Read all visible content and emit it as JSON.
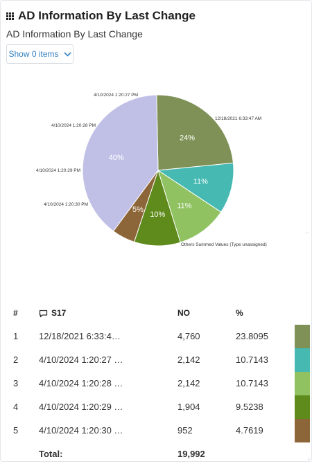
{
  "widget": {
    "title": "AD Information By Last Change",
    "subtitle": "AD Information By Last Change",
    "show_button_label": "Show 0 items"
  },
  "chart_data": {
    "type": "pie",
    "slices": [
      {
        "label": "12/18/2021 6:33:47 AM",
        "percent": 24,
        "value": 4760,
        "color": "#7f9156"
      },
      {
        "label": "4/10/2024 1:20:27 PM",
        "percent": 11,
        "value": 2142,
        "color": "#46b9b2"
      },
      {
        "label": "4/10/2024 1:20:28 PM",
        "percent": 11,
        "value": 2142,
        "color": "#90c262"
      },
      {
        "label": "4/10/2024 1:20:29 PM",
        "percent": 10,
        "value": 1904,
        "color": "#5f8a1c"
      },
      {
        "label": "4/10/2024 1:20:30 PM",
        "percent": 5,
        "value": 952,
        "color": "#8c6538"
      },
      {
        "label": "Others Summed Values (Type unassigned)",
        "percent": 40,
        "value": 8092,
        "color": "#c0c0e6"
      }
    ]
  },
  "table": {
    "headers": {
      "index": "#",
      "name": "S17",
      "no": "NO",
      "pct": "%"
    },
    "rows": [
      {
        "index": "1",
        "name": "12/18/2021 6:33:4…",
        "no": "4,760",
        "pct": "23.8095",
        "color": "#7f9156"
      },
      {
        "index": "2",
        "name": "4/10/2024 1:20:27 …",
        "no": "2,142",
        "pct": "10.7143",
        "color": "#46b9b2"
      },
      {
        "index": "3",
        "name": "4/10/2024 1:20:28 …",
        "no": "2,142",
        "pct": "10.7143",
        "color": "#90c262"
      },
      {
        "index": "4",
        "name": "4/10/2024 1:20:29 …",
        "no": "1,904",
        "pct": "9.5238",
        "color": "#5f8a1c"
      },
      {
        "index": "5",
        "name": "4/10/2024 1:20:30 …",
        "no": "952",
        "pct": "4.7619",
        "color": "#8c6538"
      }
    ],
    "total_label": "Total:",
    "total_value": "19,992"
  }
}
